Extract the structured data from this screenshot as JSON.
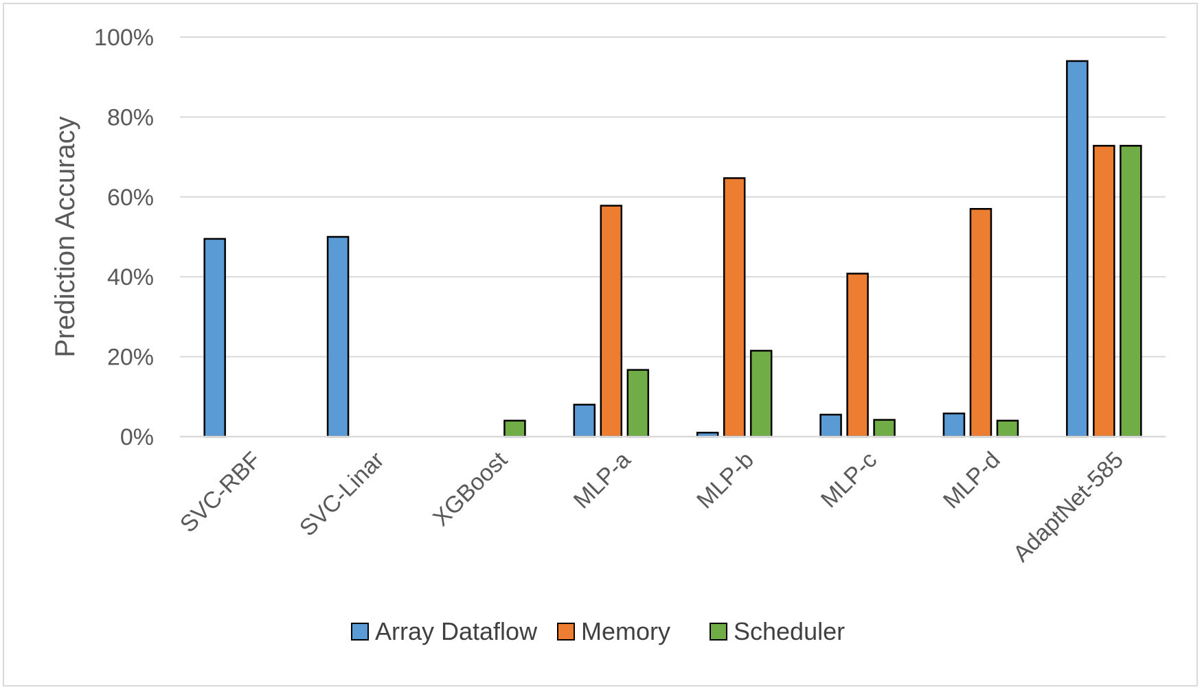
{
  "chart_data": {
    "type": "bar",
    "title": "",
    "xlabel": "",
    "ylabel": "Prediction Accuracy",
    "ylim": [
      0,
      100
    ],
    "y_tick_step": 20,
    "y_tick_format": "percent",
    "y_ticks": [
      "0%",
      "20%",
      "40%",
      "60%",
      "80%",
      "100%"
    ],
    "grid": true,
    "legend_position": "bottom",
    "categories": [
      "SVC-RBF",
      "SVC-Linar",
      "XGBoost",
      "MLP-a",
      "MLP-b",
      "MLP-c",
      "MLP-d",
      "AdaptNet-585"
    ],
    "series": [
      {
        "name": "Array Dataflow",
        "color": "#5b9bd5",
        "values": [
          49.5,
          50.0,
          0,
          8.0,
          1.0,
          5.5,
          5.8,
          94.0
        ]
      },
      {
        "name": "Memory",
        "color": "#ed7d31",
        "values": [
          0,
          0,
          0,
          57.8,
          64.7,
          40.8,
          57.0,
          72.8
        ]
      },
      {
        "name": "Scheduler",
        "color": "#70ad47",
        "values": [
          0,
          0,
          4.0,
          16.7,
          21.5,
          4.2,
          4.0,
          72.8
        ]
      }
    ]
  }
}
